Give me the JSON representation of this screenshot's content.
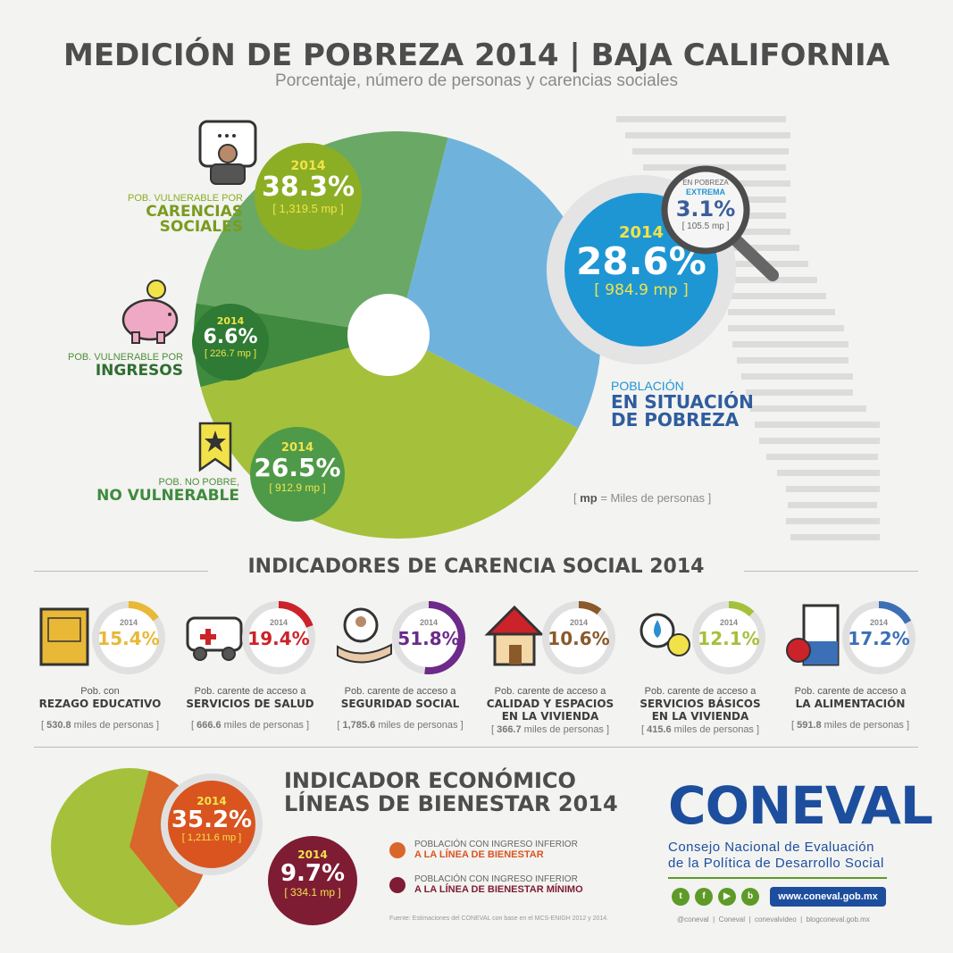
{
  "header": {
    "title": "MEDICIÓN DE POBREZA 2014 | BAJA CALIFORNIA",
    "subtitle": "Porcentaje, número de personas y carencias sociales"
  },
  "chart_data": [
    {
      "type": "pie",
      "categories": [
        "Población en situación de pobreza",
        "Pob. vulnerable por carencias sociales",
        "Pob. vulnerable por ingresos",
        "Pob. no pobre, no vulnerable"
      ],
      "values": [
        28.6,
        38.3,
        6.6,
        26.5
      ],
      "counts_mp": [
        "984.9 mp",
        "1,319.5 mp",
        "226.7 mp",
        "912.9 mp"
      ],
      "colors": [
        "#6fb3dd",
        "#a5c03a",
        "#3f8a3f",
        "#6aa866"
      ],
      "year": "2014"
    },
    {
      "type": "pie",
      "categories": [
        "Población con ingreso inferior a la línea de bienestar",
        "Población con ingreso inferior a la línea de bienestar mínimo"
      ],
      "values": [
        35.2,
        9.7
      ],
      "counts_mp": [
        "1,211.6 mp",
        "334.1 mp"
      ],
      "colors": [
        "#d9662a",
        "#7e1c34"
      ],
      "rest_color": "#a5c03a",
      "year": "2014"
    }
  ],
  "pie": {
    "carencias": {
      "year": "2014",
      "pct": "38.3%",
      "mp": "[ 1,319.5 mp ]",
      "small": "POB. VULNERABLE POR",
      "big1": "CARENCIAS",
      "big2": "SOCIALES"
    },
    "ingresos": {
      "year": "2014",
      "pct": "6.6%",
      "mp": "[ 226.7 mp ]",
      "small": "POB. VULNERABLE POR",
      "big1": "INGRESOS"
    },
    "nopobre": {
      "year": "2014",
      "pct": "26.5%",
      "mp": "[ 912.9 mp ]",
      "small": "POB. NO POBRE,",
      "big1": "NO VULNERABLE"
    },
    "pobreza": {
      "year": "2014",
      "pct": "28.6%",
      "mp": "[ 984.9 mp ]",
      "small": "POBLACIÓN",
      "big1": "EN SITUACIÓN",
      "big2": "DE POBREZA"
    },
    "extrema": {
      "l1": "EN POBREZA",
      "l2": "EXTREMA",
      "pct": "3.1%",
      "mp": "[ 105.5 mp ]"
    },
    "legend_mp": "mp",
    "legend_rest": " = Miles de personas ]",
    "legend_open": "[ "
  },
  "indicators": {
    "title": "INDICADORES DE CARENCIA SOCIAL 2014",
    "items": [
      {
        "year": "2014",
        "pct": "15.4%",
        "value": 15.4,
        "color": "#e8b836",
        "cap1": "Pob. con",
        "bold1": "REZAGO EDUCATIVO",
        "bold2": "",
        "foot_val": "530.8",
        "foot_unit": " miles de personas"
      },
      {
        "year": "2014",
        "pct": "19.4%",
        "value": 19.4,
        "color": "#cc2229",
        "cap1": "Pob. carente de acceso a",
        "bold1": "SERVICIOS DE SALUD",
        "bold2": "",
        "foot_val": "666.6",
        "foot_unit": " miles de personas"
      },
      {
        "year": "2014",
        "pct": "51.8%",
        "value": 51.8,
        "color": "#6d2a8a",
        "cap1": "Pob. carente de acceso a",
        "bold1": "SEGURIDAD SOCIAL",
        "bold2": "",
        "foot_val": "1,785.6",
        "foot_unit": " miles de personas"
      },
      {
        "year": "2014",
        "pct": "10.6%",
        "value": 10.6,
        "color": "#8a5a2b",
        "cap1": "Pob. carente de acceso a",
        "bold1": "CALIDAD Y ESPACIOS",
        "bold2": "EN LA VIVIENDA",
        "foot_val": "366.7",
        "foot_unit": " miles de personas"
      },
      {
        "year": "2014",
        "pct": "12.1%",
        "value": 12.1,
        "color": "#a5c03a",
        "cap1": "Pob. carente de acceso a",
        "bold1": "SERVICIOS BÁSICOS",
        "bold2": "EN LA VIVIENDA",
        "foot_val": "415.6",
        "foot_unit": " miles de personas"
      },
      {
        "year": "2014",
        "pct": "17.2%",
        "value": 17.2,
        "color": "#3b6fb6",
        "cap1": "Pob. carente de acceso a",
        "bold1": "LA ALIMENTACIÓN",
        "bold2": "",
        "foot_val": "591.8",
        "foot_unit": " miles de personas"
      }
    ]
  },
  "economic": {
    "title1": "INDICADOR ECONÓMICO",
    "title2": "LÍNEAS DE BIENESTAR 2014",
    "c1": {
      "year": "2014",
      "pct": "35.2%",
      "mp": "[ 1,211.6 mp ]"
    },
    "c2": {
      "year": "2014",
      "pct": "9.7%",
      "mp": "[ 334.1 mp ]"
    },
    "leg1a": "POBLACIÓN CON INGRESO INFERIOR",
    "leg1b": "A LA LÍNEA DE BIENESTAR",
    "leg2a": "POBLACIÓN CON INGRESO INFERIOR",
    "leg2b": "A LA LÍNEA DE BIENESTAR MÍNIMO",
    "source": "Fuente: Estimaciones del CONEVAL con base en el MCS-ENIGH 2012 y 2014."
  },
  "coneval": {
    "logo": "CONEVAL",
    "name1": "Consejo Nacional de Evaluación",
    "name2": "de la Política de Desarrollo Social",
    "url": "www.coneval.gob.mx",
    "footer": "@coneval  |  Coneval  |  conevalvideo  |  blogconeval.gob.mx",
    "colors": {
      "brand": "#1d4e9e",
      "accent": "#5e9a27"
    }
  }
}
